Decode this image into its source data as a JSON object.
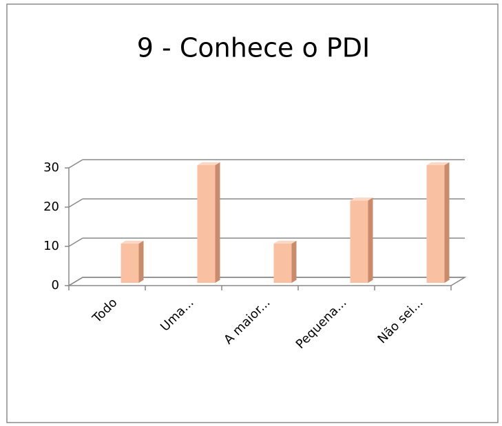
{
  "chart_data": {
    "type": "bar",
    "title": "9 - Conhece o PDI",
    "categories": [
      "Todo",
      "Uma...",
      "A maior...",
      "Pequena...",
      "Não sei..."
    ],
    "values": [
      10,
      30,
      10,
      21,
      30
    ],
    "color": "#f9c0a2",
    "ylim": [
      0,
      30
    ],
    "yticks": [
      0,
      10,
      20,
      30
    ],
    "grid": true
  }
}
